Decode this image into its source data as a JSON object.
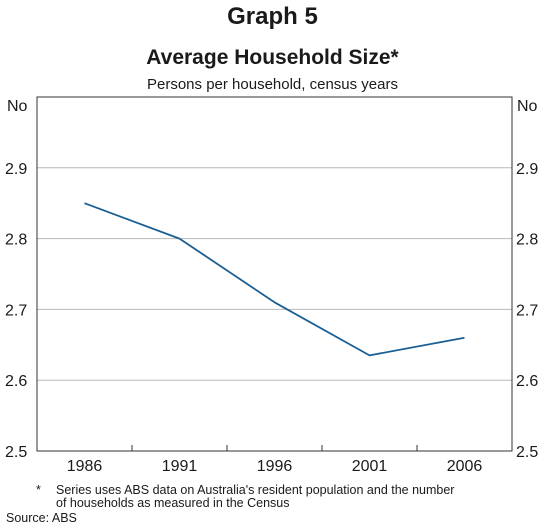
{
  "header": {
    "graph_label": "Graph 5",
    "title": "Average Household Size*",
    "subtitle": "Persons per household, census years"
  },
  "footnotes": {
    "asterisk": "*",
    "note_line1": "Series uses ABS data on Australia's resident population and the number",
    "note_line2": "of households as measured in the Census",
    "source": "Source: ABS"
  },
  "colors": {
    "line": "#1a5f94",
    "grid": "#b8b8b8",
    "axis": "#333333"
  },
  "chart_data": {
    "type": "line",
    "title": "Average Household Size*",
    "subtitle": "Persons per household, census years",
    "ylabel_left": "No",
    "ylabel_right": "No",
    "x": [
      1986,
      1991,
      1996,
      2001,
      2006
    ],
    "series": [
      {
        "values": [
          2.85,
          2.8,
          2.71,
          2.635,
          2.66
        ]
      }
    ],
    "ylim": [
      2.5,
      3.0
    ],
    "yticks": [
      "2.5",
      "2.6",
      "2.7",
      "2.8",
      "2.9"
    ],
    "xticks": [
      "1986",
      "1991",
      "1996",
      "2001",
      "2006"
    ],
    "grid": true,
    "legend": "none"
  }
}
